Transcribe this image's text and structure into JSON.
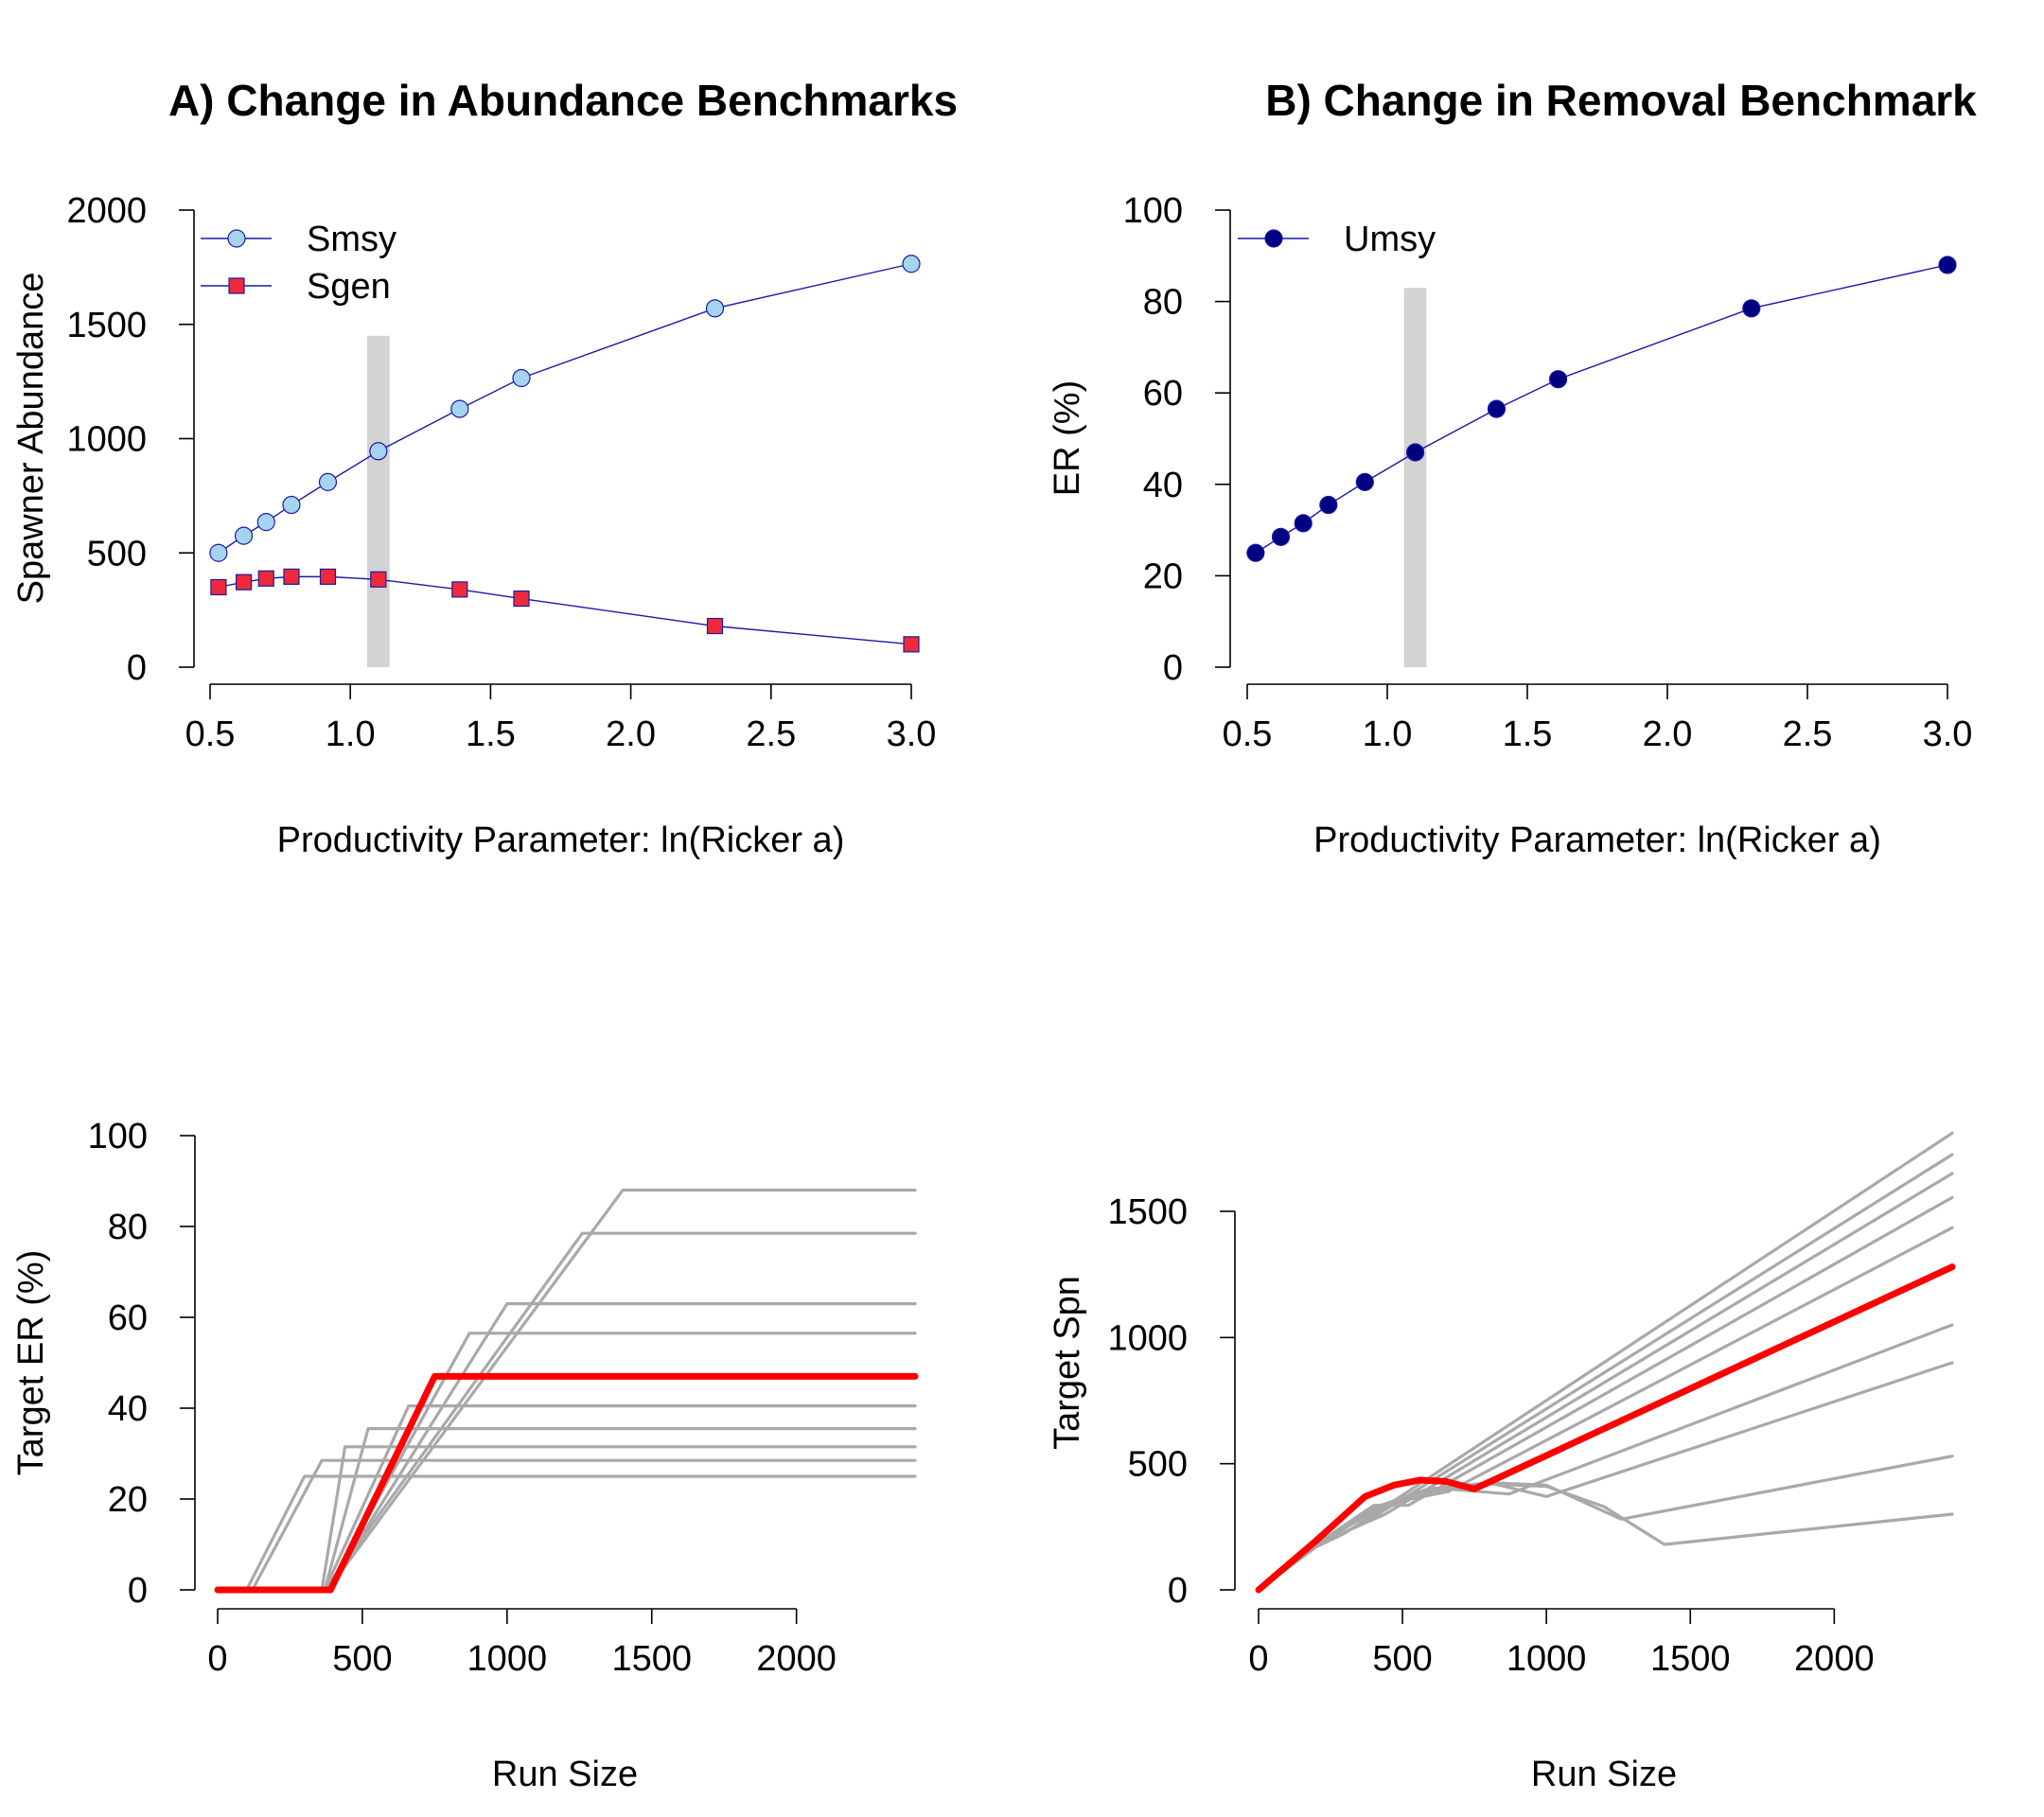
{
  "colors": {
    "series_line": "#1a1aa6",
    "smsy_fill": "#a6d3ee",
    "sgen_fill": "#ee2a3a",
    "umsy_fill": "#000080",
    "ref_band": "#d3d3d3",
    "hcr_gray": "#a9a9a9",
    "hcr_red": "#ff0000"
  },
  "chart_data": [
    {
      "id": "A",
      "type": "line",
      "title": "A) Change in Abundance Benchmarks",
      "xlabel": "Productivity Parameter: ln(Ricker a)",
      "ylabel": "Spawner Abundance",
      "xlim": [
        0.5,
        3.0
      ],
      "ylim": [
        0,
        2000
      ],
      "xticks": [
        "0.5",
        "1.0",
        "1.5",
        "2.0",
        "2.5",
        "3.0"
      ],
      "yticks": [
        "0",
        "500",
        "1000",
        "1500",
        "2000"
      ],
      "reference_band": [
        1.06,
        1.14
      ],
      "legend_position": "top-left",
      "grid": false,
      "x": [
        0.53,
        0.62,
        0.7,
        0.79,
        0.92,
        1.1,
        1.39,
        1.61,
        2.3,
        3.0
      ],
      "series": [
        {
          "name": "Smsy",
          "marker": "circle",
          "values": [
            500,
            575,
            635,
            710,
            810,
            945,
            1130,
            1265,
            1570,
            1765
          ]
        },
        {
          "name": "Sgen",
          "marker": "square",
          "values": [
            350,
            372,
            388,
            396,
            396,
            384,
            340,
            300,
            180,
            100
          ]
        }
      ]
    },
    {
      "id": "B",
      "type": "line",
      "title": "B) Change in Removal Benchmark",
      "xlabel": "Productivity Parameter: ln(Ricker a)",
      "ylabel": "ER (%)",
      "xlim": [
        0.5,
        3.0
      ],
      "ylim": [
        0,
        100
      ],
      "xticks": [
        "0.5",
        "1.0",
        "1.5",
        "2.0",
        "2.5",
        "3.0"
      ],
      "yticks": [
        "0",
        "20",
        "40",
        "60",
        "80",
        "100"
      ],
      "reference_band": [
        1.06,
        1.14
      ],
      "legend_position": "top-left",
      "grid": false,
      "x": [
        0.53,
        0.62,
        0.7,
        0.79,
        0.92,
        1.1,
        1.39,
        1.61,
        2.3,
        3.0
      ],
      "series": [
        {
          "name": "Umsy",
          "marker": "circle",
          "values": [
            25,
            28.5,
            31.5,
            35.5,
            40.5,
            47,
            56.5,
            63,
            78.5,
            88
          ]
        }
      ]
    },
    {
      "id": "C",
      "type": "line",
      "title": "",
      "xlabel": "Run Size",
      "ylabel": "Target ER (%)",
      "xlim": [
        0,
        2400
      ],
      "ylim": [
        0,
        100
      ],
      "xticks": [
        "0",
        "500",
        "1000",
        "1500",
        "2000"
      ],
      "yticks": [
        "0",
        "20",
        "40",
        "60",
        "80",
        "100"
      ],
      "grid": false,
      "series": [
        {
          "highlight": false,
          "x": [
            0,
            100,
            300,
            2410
          ],
          "values": [
            0,
            0,
            25,
            25
          ]
        },
        {
          "highlight": false,
          "x": [
            0,
            120,
            360,
            2410
          ],
          "values": [
            0,
            0,
            28.5,
            28.5
          ]
        },
        {
          "highlight": false,
          "x": [
            0,
            360,
            440,
            2410
          ],
          "values": [
            0,
            0,
            31.5,
            31.5
          ]
        },
        {
          "highlight": false,
          "x": [
            0,
            370,
            520,
            2410
          ],
          "values": [
            0,
            0,
            35.5,
            35.5
          ]
        },
        {
          "highlight": false,
          "x": [
            0,
            370,
            660,
            2410
          ],
          "values": [
            0,
            0,
            40.5,
            40.5
          ]
        },
        {
          "highlight": false,
          "x": [
            0,
            380,
            870,
            2410
          ],
          "values": [
            0,
            0,
            56.5,
            56.5
          ]
        },
        {
          "highlight": false,
          "x": [
            0,
            380,
            1000,
            2410
          ],
          "values": [
            0,
            0,
            63,
            63
          ]
        },
        {
          "highlight": false,
          "x": [
            0,
            370,
            1260,
            2410
          ],
          "values": [
            0,
            0,
            78.5,
            78.5
          ]
        },
        {
          "highlight": false,
          "x": [
            0,
            380,
            1400,
            2410
          ],
          "values": [
            0,
            0,
            88,
            88
          ]
        },
        {
          "highlight": true,
          "x": [
            0,
            390,
            750,
            2410
          ],
          "values": [
            0,
            0,
            47,
            47
          ]
        }
      ]
    },
    {
      "id": "D",
      "type": "line",
      "title": "",
      "xlabel": "Run Size",
      "ylabel": "Target Spn",
      "xlim": [
        0,
        2400
      ],
      "ylim": [
        0,
        1800
      ],
      "xticks": [
        "0",
        "500",
        "1000",
        "1500",
        "2000"
      ],
      "yticks": [
        "0",
        "500",
        "1000",
        "1500"
      ],
      "grid": false,
      "series": [
        {
          "highlight": false,
          "x": [
            0,
            200,
            400,
            600,
            800,
            1000,
            1200,
            1410,
            2410
          ],
          "values": [
            0,
            180,
            310,
            390,
            420,
            410,
            330,
            180,
            300
          ]
        },
        {
          "highlight": false,
          "x": [
            0,
            200,
            400,
            600,
            800,
            1000,
            1260,
            2410
          ],
          "values": [
            0,
            180,
            315,
            395,
            425,
            415,
            280,
            530
          ]
        },
        {
          "highlight": false,
          "x": [
            0,
            200,
            400,
            600,
            800,
            1000,
            2410
          ],
          "values": [
            0,
            180,
            320,
            400,
            425,
            370,
            900
          ]
        },
        {
          "highlight": false,
          "x": [
            0,
            200,
            400,
            600,
            870,
            2410
          ],
          "values": [
            0,
            180,
            325,
            405,
            380,
            1050
          ]
        },
        {
          "highlight": false,
          "x": [
            0,
            200,
            400,
            660,
            2410
          ],
          "values": [
            0,
            180,
            330,
            390,
            1435
          ]
        },
        {
          "highlight": false,
          "x": [
            0,
            200,
            400,
            520,
            2410
          ],
          "values": [
            0,
            180,
            335,
            335,
            1555
          ]
        },
        {
          "highlight": false,
          "x": [
            0,
            200,
            440,
            2410
          ],
          "values": [
            0,
            180,
            300,
            1650
          ]
        },
        {
          "highlight": false,
          "x": [
            0,
            200,
            360,
            2410
          ],
          "values": [
            0,
            180,
            260,
            1725
          ]
        },
        {
          "highlight": false,
          "x": [
            0,
            200,
            300,
            2410
          ],
          "values": [
            0,
            170,
            225,
            1810
          ]
        },
        {
          "highlight": true,
          "x": [
            0,
            200,
            370,
            470,
            560,
            650,
            750,
            2410
          ],
          "values": [
            0,
            195,
            370,
            415,
            435,
            430,
            400,
            1280
          ]
        }
      ]
    }
  ]
}
